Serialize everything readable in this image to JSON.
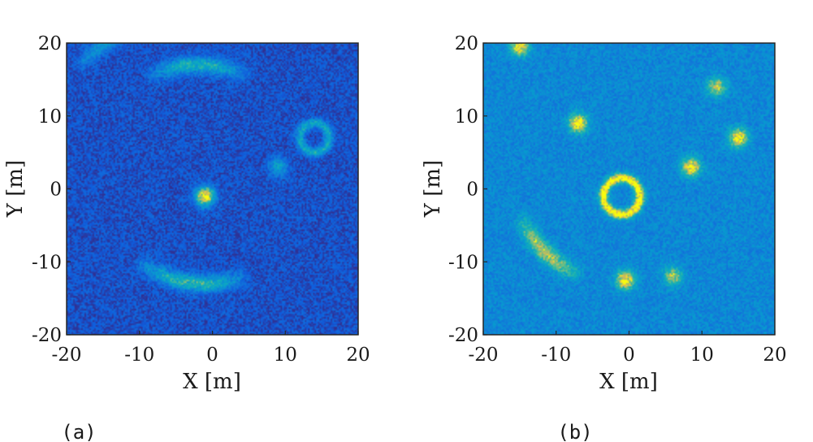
{
  "chart_data": [
    {
      "type": "heatmap",
      "caption": "(a)",
      "xlabel": "X [m]",
      "ylabel": "Y [m]",
      "xlim": [
        -20,
        20
      ],
      "ylim": [
        -20,
        20
      ],
      "xticks": [
        "-20",
        "-10",
        "0",
        "10",
        "20"
      ],
      "yticks": [
        "-20",
        "-10",
        "0",
        "10",
        "20"
      ],
      "colormap": "parula",
      "background_level": 0.12,
      "features": [
        {
          "kind": "spot",
          "x": -1,
          "y": -1,
          "level": 0.95
        },
        {
          "kind": "ring",
          "x": 14,
          "y": 7,
          "radius": 2,
          "level": 0.4
        },
        {
          "kind": "spot",
          "x": 9,
          "y": 3,
          "level": 0.35
        },
        {
          "kind": "arc",
          "x": -2,
          "y": 2,
          "radius": 15,
          "from_deg": 60,
          "to_deg": 120,
          "level": 0.45
        },
        {
          "kind": "arc",
          "x": -1,
          "y": 2,
          "radius": 15,
          "from_deg": 230,
          "to_deg": 295,
          "level": 0.5
        },
        {
          "kind": "arc",
          "x": -2,
          "y": 2,
          "radius": 22,
          "from_deg": 110,
          "to_deg": 140,
          "level": 0.3
        }
      ]
    },
    {
      "type": "heatmap",
      "caption": "(b)",
      "xlabel": "X [m]",
      "ylabel": "Y [m]",
      "xlim": [
        -20,
        20
      ],
      "ylim": [
        -20,
        20
      ],
      "xticks": [
        "-20",
        "-10",
        "0",
        "10",
        "20"
      ],
      "yticks": [
        "-20",
        "-10",
        "0",
        "10",
        "20"
      ],
      "colormap": "parula",
      "background_level": 0.35,
      "features": [
        {
          "kind": "ring",
          "x": -1,
          "y": -1,
          "radius": 2.5,
          "level": 0.75
        },
        {
          "kind": "spot",
          "x": -7,
          "y": 9,
          "level": 0.75
        },
        {
          "kind": "spot",
          "x": 15,
          "y": 7,
          "level": 0.7
        },
        {
          "kind": "spot",
          "x": 8.5,
          "y": 3,
          "level": 0.7
        },
        {
          "kind": "spot",
          "x": -0.5,
          "y": -12.5,
          "level": 0.7
        },
        {
          "kind": "spot",
          "x": -15,
          "y": 19.5,
          "level": 0.65
        },
        {
          "kind": "spot",
          "x": 12,
          "y": 14,
          "level": 0.55
        },
        {
          "kind": "spot",
          "x": 6,
          "y": -12,
          "level": 0.5
        },
        {
          "kind": "arc",
          "x": -1,
          "y": 2,
          "radius": 15,
          "from_deg": 200,
          "to_deg": 250,
          "level": 0.5
        }
      ]
    }
  ]
}
